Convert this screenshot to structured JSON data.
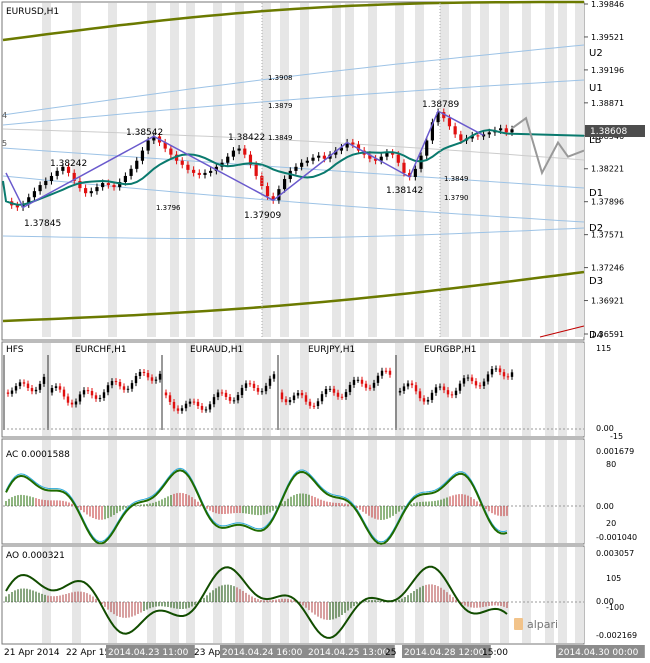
{
  "window": {
    "symbol_title": "EURUSD,H1"
  },
  "colors": {
    "background": "#ffffff",
    "frame": "#777777",
    "bull_candle": "#000000",
    "bear_candle": "#e01010",
    "channel_outer": "#6b7a00",
    "channel_inner": "#9dc3e6",
    "ma": "#0a7a6e",
    "zigzag": "#6a5acd",
    "forecast": "#999999",
    "session_band": "#e6e6e6",
    "ac_line": "#1f6b00",
    "ac_line2": "#2aa9d8",
    "ao_line": "#124d00",
    "price_tag_bg": "#4d4d4d"
  },
  "main_chart": {
    "price_axis_ticks": [
      "1.39846",
      "1.39521",
      "1.39196",
      "1.38871",
      "1.38546",
      "1.38221",
      "1.37896",
      "1.37571",
      "1.37246",
      "1.36921",
      "1.36591"
    ],
    "current_price": "1.38608",
    "levels": [
      {
        "label": "U2"
      },
      {
        "label": "U1"
      },
      {
        "label": "LB"
      },
      {
        "label": "D1"
      },
      {
        "label": "D2"
      },
      {
        "label": "D3"
      },
      {
        "label": "D4"
      }
    ],
    "swing_labels": [
      {
        "text": "1.38242"
      },
      {
        "text": "1.37845"
      },
      {
        "text": "1.38542"
      },
      {
        "text": "1.3796"
      },
      {
        "text": "1.38422"
      },
      {
        "text": "1.37909"
      },
      {
        "text": "1.3849"
      },
      {
        "text": "1.38142"
      },
      {
        "text": "1.38789"
      },
      {
        "text": "1.3908"
      },
      {
        "text": "1.3879"
      }
    ],
    "small_labels": [
      {
        "text": "1.3908"
      },
      {
        "text": "1.3879"
      },
      {
        "text": "1.3849"
      },
      {
        "text": "1.3849"
      },
      {
        "text": "1.3790"
      },
      {
        "text": "1.3796"
      }
    ],
    "left_edge_marks": [
      "4",
      "5"
    ]
  },
  "panel_fs": {
    "title": "HFS",
    "pair_labels": [
      "EURCHF,H1",
      "EURAUD,H1",
      "EURJPY,H1",
      "EURGBP,H1"
    ],
    "axis_ticks": [
      "115",
      "0.00",
      "-15"
    ]
  },
  "panel_ac": {
    "title": "AC 0.0001588",
    "axis_ticks": [
      "0.001679",
      "80",
      "0.00",
      "20",
      "-0.001040"
    ]
  },
  "panel_ao": {
    "title": "AO 0.000321",
    "axis_ticks": [
      "0.003057",
      "105",
      "0.00",
      "-100",
      "-0.002169"
    ]
  },
  "time_axis": {
    "labels": [
      "21 Apr 2014",
      "22 Apr 15:00",
      "2014.04.23 11:00",
      "23 Apr",
      "2014.04.24 16:00",
      "2014.04.25 13:00",
      "25",
      "2014.04.28 12:00",
      "15:00",
      "2014.04.30 00:00"
    ]
  },
  "watermark": {
    "text": "alpari"
  },
  "chart_data": {
    "type": "candlestick",
    "title": "EURUSD,H1",
    "series_close": [
      1.379,
      1.3786,
      1.3784,
      1.3787,
      1.3794,
      1.38,
      1.3806,
      1.381,
      1.3815,
      1.382,
      1.3824,
      1.3818,
      1.381,
      1.3803,
      1.3798,
      1.38,
      1.3804,
      1.3808,
      1.3806,
      1.3804,
      1.3809,
      1.3815,
      1.3822,
      1.383,
      1.384,
      1.385,
      1.3854,
      1.3848,
      1.3842,
      1.3836,
      1.383,
      1.3826,
      1.3821,
      1.3818,
      1.3816,
      1.3818,
      1.382,
      1.3824,
      1.3828,
      1.3834,
      1.384,
      1.3842,
      1.3836,
      1.3826,
      1.3815,
      1.3805,
      1.3795,
      1.3791,
      1.3802,
      1.3812,
      1.382,
      1.3824,
      1.3828,
      1.383,
      1.3833,
      1.3835,
      1.3832,
      1.3836,
      1.384,
      1.3843,
      1.3848,
      1.3846,
      1.384,
      1.3836,
      1.3832,
      1.383,
      1.3834,
      1.3838,
      1.3836,
      1.3828,
      1.3818,
      1.3814,
      1.3822,
      1.3835,
      1.385,
      1.3868,
      1.3878,
      1.3872,
      1.3864,
      1.3856,
      1.385,
      1.3852,
      1.3855,
      1.3854,
      1.3856,
      1.3858,
      1.386,
      1.3862,
      1.3858,
      1.3861
    ]
  }
}
